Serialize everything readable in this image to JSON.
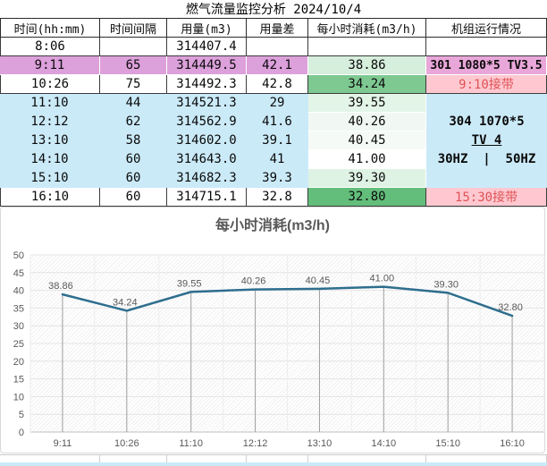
{
  "title": "燃气流量监控分析 2024/10/4",
  "table": {
    "columns": [
      "时间(hh:mm)",
      "时间间隔",
      "用量(m3)",
      "用量差",
      "每小时消耗(m3/h)",
      "机组运行情况"
    ],
    "rows": [
      {
        "time": "8:06",
        "interval": "",
        "usage": "314407.4",
        "diff": "",
        "rate": "",
        "note": "",
        "row_bg": "#FFFFFF",
        "rate_bg": "#FFFFFF",
        "note_bg": "#FFFFFF",
        "note_color": "#0a0a0a",
        "note_bold": false
      },
      {
        "time": "9:11",
        "interval": "65",
        "usage": "314449.5",
        "diff": "42.1",
        "rate": "38.86",
        "note": "301 1080*5 TV3.5",
        "row_bg": "#DCA0DB",
        "rate_bg": "#D6EEDC",
        "note_bg": "#E8A6D9",
        "note_color": "#0a0a0a",
        "note_bold": true
      },
      {
        "time": "10:26",
        "interval": "75",
        "usage": "314492.3",
        "diff": "42.8",
        "rate": "34.24",
        "note": "9:10接带",
        "row_bg": "#FFFFFF",
        "rate_bg": "#7EC992",
        "note_bg": "#FFC8D0",
        "note_color": "#DE5356",
        "note_bold": false
      },
      {
        "time": "11:10",
        "interval": "44",
        "usage": "314521.3",
        "diff": "29",
        "rate": "39.55",
        "note": "",
        "row_bg": "#CBEAF8",
        "rate_bg": "#E3F5E7",
        "note_bg": "#CBEAF8",
        "note_color": "#0a0a0a",
        "note_bold": false
      },
      {
        "time": "12:12",
        "interval": "62",
        "usage": "314562.9",
        "diff": "41.6",
        "rate": "40.26",
        "note": "",
        "row_bg": "#CBEAF8",
        "rate_bg": "#F1F8F3",
        "note_bg": "#CBEAF8",
        "note_color": "#0a0a0a",
        "note_bold": false
      },
      {
        "time": "13:10",
        "interval": "58",
        "usage": "314602.0",
        "diff": "39.1",
        "rate": "40.45",
        "note": "",
        "row_bg": "#CBEAF8",
        "rate_bg": "#F5FAF6",
        "note_bg": "#CBEAF8",
        "note_color": "#0a0a0a",
        "note_bold": false
      },
      {
        "time": "14:10",
        "interval": "60",
        "usage": "314643.0",
        "diff": "41",
        "rate": "41.00",
        "note": "",
        "row_bg": "#CBEAF8",
        "rate_bg": "#FFFFFF",
        "note_bg": "#CBEAF8",
        "note_color": "#0a0a0a",
        "note_bold": false
      },
      {
        "time": "15:10",
        "interval": "60",
        "usage": "314682.3",
        "diff": "39.3",
        "rate": "39.30",
        "note": "",
        "row_bg": "#CBEAF8",
        "rate_bg": "#DFF3E4",
        "note_bg": "#CBEAF8",
        "note_color": "#0a0a0a",
        "note_bold": false
      },
      {
        "time": "16:10",
        "interval": "60",
        "usage": "314715.1",
        "diff": "32.8",
        "rate": "32.80",
        "note": "15:30接带",
        "row_bg": "#FFFFFF",
        "rate_bg": "#63BE7B",
        "note_bg": "#FFC8D0",
        "note_color": "#DE5356",
        "note_bold": false
      }
    ],
    "note_block": {
      "bg": "#CBEAF8",
      "lines": [
        "304 1070*5",
        "TV 4",
        "30HZ  |  50HZ"
      ],
      "underline_line": 1
    }
  },
  "chart_data": {
    "type": "line",
    "title": "每小时消耗(m3/h)",
    "categories": [
      "9:11",
      "10:26",
      "11:10",
      "12:12",
      "13:10",
      "14:10",
      "15:10",
      "16:10"
    ],
    "values": [
      38.86,
      34.24,
      39.55,
      40.26,
      40.45,
      41.0,
      39.3,
      32.8
    ],
    "labels": [
      "38.86",
      "34.24",
      "39.55",
      "40.26",
      "40.45",
      "41.00",
      "39.30",
      "32.80"
    ],
    "xlabel": "",
    "ylabel": "",
    "ylim": [
      0,
      50
    ],
    "ytick_step": 5,
    "grid": true,
    "drop_lines": true,
    "legend": "none",
    "colors": {
      "line": "#2E6E8E",
      "label": "#595959",
      "axis_text": "#595959",
      "gridline": "#E4E4E4",
      "drop_line": "#9E9E9E",
      "axis_line": "#BFBFBF",
      "boundary_line": "#EDEDED"
    }
  },
  "footer": {
    "strip_color": "#CBEAF8"
  }
}
